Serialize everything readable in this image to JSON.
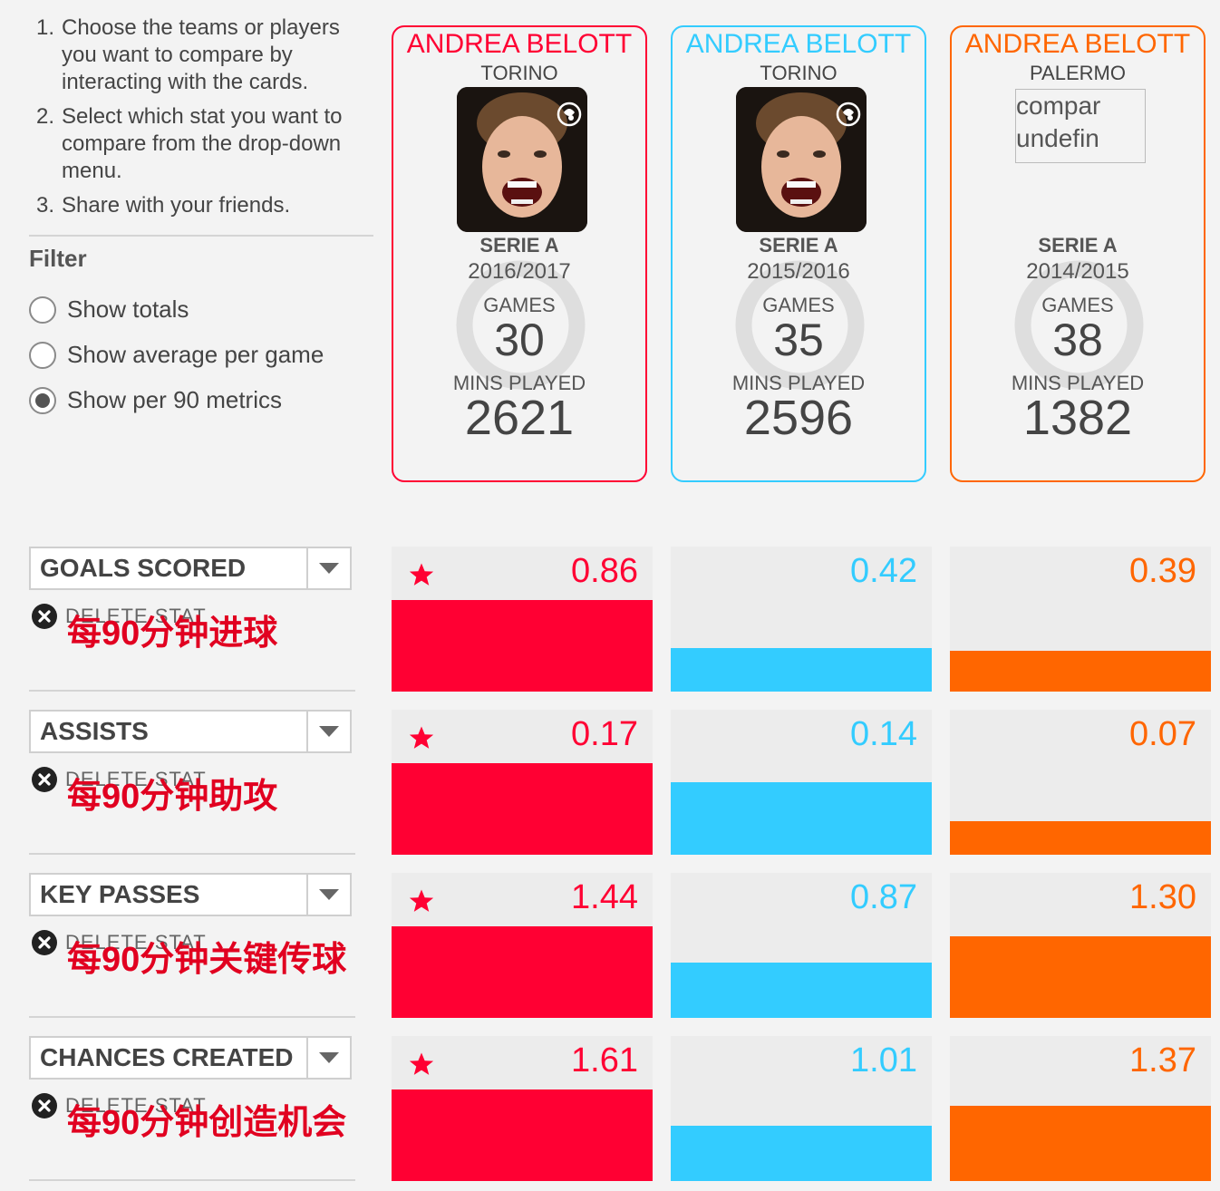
{
  "instructions": {
    "items": [
      {
        "num": "1.",
        "text": "Choose the teams or players you want to compare by interacting with the cards."
      },
      {
        "num": "2.",
        "text": "Select which stat you want to compare from the drop-down menu."
      },
      {
        "num": "3.",
        "text": "Share with your friends."
      }
    ]
  },
  "filter": {
    "title": "Filter",
    "options": [
      {
        "label": "Show totals",
        "checked": false
      },
      {
        "label": "Show average per game",
        "checked": false
      },
      {
        "label": "Show per 90 metrics",
        "checked": true
      }
    ]
  },
  "cards": [
    {
      "name": "ANDREA BELOTT",
      "team": "TORINO",
      "competition": "SERIE A",
      "season": "2016/2017",
      "games_label": "GAMES",
      "games": "30",
      "mins_label": "MINS PLAYED",
      "mins": "2621",
      "color": "#ff0033",
      "photo": true,
      "broken_alt": ""
    },
    {
      "name": "ANDREA BELOTT",
      "team": "TORINO",
      "competition": "SERIE A",
      "season": "2015/2016",
      "games_label": "GAMES",
      "games": "35",
      "mins_label": "MINS PLAYED",
      "mins": "2596",
      "color": "#33ccff",
      "photo": true,
      "broken_alt": ""
    },
    {
      "name": "ANDREA BELOTT",
      "team": "PALERMO",
      "competition": "SERIE A",
      "season": "2014/2015",
      "games_label": "GAMES",
      "games": "38",
      "mins_label": "MINS PLAYED",
      "mins": "1382",
      "color": "#ff6600",
      "photo": false,
      "broken_alt": "compar undefin"
    }
  ],
  "stats": [
    {
      "label": "GOALS SCORED",
      "delete_label": "DELETE STAT",
      "cn_label": "每90分钟进球",
      "values": [
        "0.86",
        "0.42",
        "0.39"
      ],
      "fills": [
        0.63,
        0.3,
        0.28
      ],
      "best": 0
    },
    {
      "label": "ASSISTS",
      "delete_label": "DELETE STAT",
      "cn_label": "每90分钟助攻",
      "values": [
        "0.17",
        "0.14",
        "0.07"
      ],
      "fills": [
        0.63,
        0.5,
        0.23
      ],
      "best": 0
    },
    {
      "label": "KEY PASSES",
      "delete_label": "DELETE STAT",
      "cn_label": "每90分钟关键传球",
      "values": [
        "1.44",
        "0.87",
        "1.30"
      ],
      "fills": [
        0.63,
        0.38,
        0.56
      ],
      "best": 0
    },
    {
      "label": "CHANCES CREATED",
      "delete_label": "DELETE STAT",
      "cn_label": "每90分钟创造机会",
      "values": [
        "1.61",
        "1.01",
        "1.37"
      ],
      "fills": [
        0.63,
        0.38,
        0.52
      ],
      "best": 0
    }
  ],
  "icons": {
    "radio": "radio-icon",
    "dropdown": "chevron-down-icon",
    "delete": "close-circle-icon",
    "star": "star-icon",
    "club_badge": "club-badge-icon"
  }
}
